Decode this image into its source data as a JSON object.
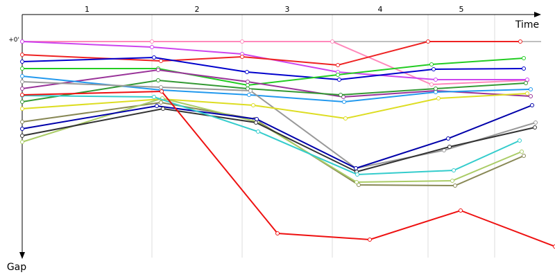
{
  "chart_data": {
    "type": "line",
    "x_label": "Time",
    "y_label": "Gap",
    "laps": [
      "1",
      "2",
      "3",
      "4",
      "5"
    ],
    "lap_ends": [
      187,
      317,
      447,
      585,
      681
    ],
    "xlim": [
      0,
      768
    ],
    "ylim": [
      -39,
      312
    ],
    "yticks": [
      {
        "value": 0,
        "label": "+0'"
      }
    ],
    "grid": true,
    "series": [
      {
        "color": "#ff88bb",
        "x": [
          0,
          187,
          317,
          447,
          590,
          728
        ],
        "values": [
          0,
          0,
          0,
          0,
          62,
          56
        ]
      },
      {
        "color": "#cc44ee",
        "x": [
          0,
          187,
          317,
          455,
          596,
          728
        ],
        "values": [
          0,
          8,
          18,
          44,
          55,
          55
        ]
      },
      {
        "color": "#ee2222",
        "x": [
          0,
          200,
          317,
          455,
          585,
          718
        ],
        "values": [
          19,
          28,
          22,
          34,
          0,
          0
        ]
      },
      {
        "color": "#0000cc",
        "x": [
          0,
          190,
          324,
          457,
          593,
          723
        ],
        "values": [
          29,
          23,
          44,
          55,
          40,
          39
        ]
      },
      {
        "color": "#22cc22",
        "x": [
          0,
          196,
          325,
          455,
          590,
          723
        ],
        "values": [
          39,
          39,
          63,
          48,
          33,
          24
        ]
      },
      {
        "color": "#993399",
        "x": [
          0,
          196,
          325,
          463,
          596,
          733
        ],
        "values": [
          68,
          41,
          58,
          80,
          71,
          79
        ]
      },
      {
        "color": "#2299ee",
        "x": [
          0,
          200,
          327,
          464,
          596,
          733
        ],
        "values": [
          50,
          70,
          77,
          87,
          73,
          69
        ]
      },
      {
        "color": "#339933",
        "x": [
          0,
          196,
          325,
          459,
          596,
          726
        ],
        "values": [
          87,
          56,
          68,
          77,
          68,
          60
        ]
      },
      {
        "color": "#999999",
        "x": [
          0,
          200,
          329,
          481,
          608,
          740
        ],
        "values": [
          58,
          66,
          71,
          183,
          157,
          117
        ]
      },
      {
        "color": "#dddd22",
        "x": [
          0,
          201,
          333,
          466,
          600,
          728
        ],
        "values": [
          97,
          83,
          92,
          111,
          82,
          75
        ]
      },
      {
        "color": "#888855",
        "x": [
          0,
          200,
          335,
          485,
          624,
          723
        ],
        "values": [
          116,
          88,
          112,
          207,
          208,
          165
        ]
      },
      {
        "color": "#aacc66",
        "x": [
          0,
          202,
          339,
          482,
          620,
          720
        ],
        "values": [
          145,
          82,
          116,
          203,
          201,
          159
        ]
      },
      {
        "color": "#0000aa",
        "x": [
          0,
          194,
          338,
          481,
          614,
          735
        ],
        "values": [
          126,
          93,
          112,
          183,
          140,
          92
        ]
      },
      {
        "color": "#333333",
        "x": [
          0,
          203,
          337,
          482,
          616,
          739
        ],
        "values": [
          136,
          97,
          117,
          188,
          152,
          124
        ]
      },
      {
        "color": "#33cccc",
        "x": [
          0,
          190,
          340,
          483,
          622,
          717
        ],
        "values": [
          78,
          80,
          130,
          192,
          186,
          143
        ]
      },
      {
        "color": "#ee1111",
        "x": [
          0,
          201,
          368,
          501,
          632,
          768
        ],
        "values": [
          77,
          72,
          277,
          286,
          244,
          296
        ]
      }
    ]
  }
}
